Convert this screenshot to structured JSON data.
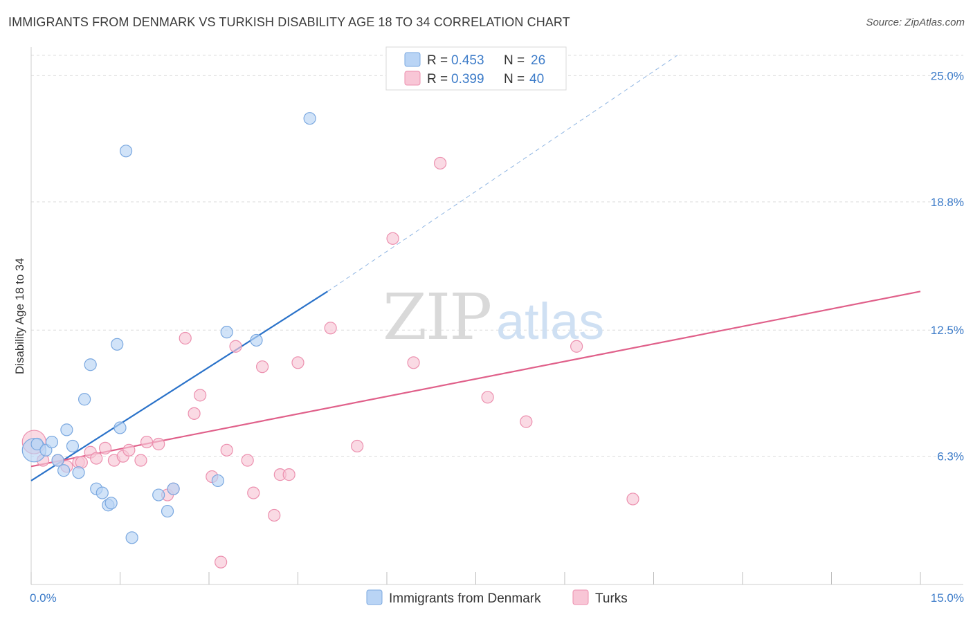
{
  "title": "IMMIGRANTS FROM DENMARK VS TURKISH DISABILITY AGE 18 TO 34 CORRELATION CHART",
  "source": "Source: ZipAtlas.com",
  "watermark": {
    "zip": "ZIP",
    "atlas": "atlas"
  },
  "colors": {
    "denmark_fill": "#b9d4f5",
    "denmark_stroke": "#7aa8e0",
    "denmark_line": "#2a72c9",
    "turks_fill": "#f8c6d6",
    "turks_stroke": "#ec8fae",
    "turks_line": "#e0608a",
    "grid": "#dcdcdc",
    "tick_text": "#3d7cc9"
  },
  "legend": {
    "rows": [
      {
        "r_label": "R =",
        "r_value": "0.453",
        "n_label": "N =",
        "n_value": "26"
      },
      {
        "r_label": "R =",
        "r_value": "0.399",
        "n_label": "N =",
        "n_value": "40"
      }
    ]
  },
  "chart_data": {
    "type": "scatter",
    "title": "IMMIGRANTS FROM DENMARK VS TURKISH DISABILITY AGE 18 TO 34 CORRELATION CHART",
    "xlabel": "",
    "ylabel": "Disability Age 18 to 34",
    "xlim": [
      0,
      15
    ],
    "ylim": [
      0,
      26
    ],
    "x_tick_labels": [
      "0.0%",
      "15.0%"
    ],
    "y_ticks": [
      6.3,
      12.5,
      18.8,
      25.0
    ],
    "y_tick_labels": [
      "6.3%",
      "12.5%",
      "18.8%",
      "25.0%"
    ],
    "grid": true,
    "legend_placement": "top-center",
    "series": [
      {
        "name": "Immigrants from Denmark",
        "r": 0.453,
        "n": 26,
        "trend": {
          "x": [
            0,
            5
          ],
          "y": [
            5.1,
            14.4
          ],
          "dashed_to": [
            10.9,
            26
          ]
        },
        "points": [
          {
            "x": 0.05,
            "y": 6.6,
            "big": true
          },
          {
            "x": 0.1,
            "y": 6.9
          },
          {
            "x": 0.25,
            "y": 6.6
          },
          {
            "x": 0.35,
            "y": 7.0
          },
          {
            "x": 0.45,
            "y": 6.1
          },
          {
            "x": 0.55,
            "y": 5.6
          },
          {
            "x": 0.6,
            "y": 7.6
          },
          {
            "x": 0.7,
            "y": 6.8
          },
          {
            "x": 0.8,
            "y": 5.5
          },
          {
            "x": 0.9,
            "y": 9.1
          },
          {
            "x": 1.0,
            "y": 10.8
          },
          {
            "x": 1.1,
            "y": 4.7
          },
          {
            "x": 1.2,
            "y": 4.5
          },
          {
            "x": 1.3,
            "y": 3.9
          },
          {
            "x": 1.35,
            "y": 4.0
          },
          {
            "x": 1.45,
            "y": 11.8
          },
          {
            "x": 1.5,
            "y": 7.7
          },
          {
            "x": 1.6,
            "y": 21.3
          },
          {
            "x": 1.7,
            "y": 2.3
          },
          {
            "x": 2.15,
            "y": 4.4
          },
          {
            "x": 2.3,
            "y": 3.6
          },
          {
            "x": 2.4,
            "y": 4.7
          },
          {
            "x": 3.15,
            "y": 5.1
          },
          {
            "x": 3.3,
            "y": 12.4
          },
          {
            "x": 3.8,
            "y": 12.0
          },
          {
            "x": 4.7,
            "y": 22.9
          }
        ]
      },
      {
        "name": "Turks",
        "r": 0.399,
        "n": 40,
        "trend": {
          "x": [
            0,
            15
          ],
          "y": [
            5.8,
            14.4
          ]
        },
        "points": [
          {
            "x": 0.05,
            "y": 7.0,
            "big": true
          },
          {
            "x": 0.2,
            "y": 6.1
          },
          {
            "x": 0.45,
            "y": 6.1
          },
          {
            "x": 0.6,
            "y": 5.8
          },
          {
            "x": 0.8,
            "y": 6.0
          },
          {
            "x": 0.85,
            "y": 6.0
          },
          {
            "x": 1.0,
            "y": 6.5
          },
          {
            "x": 1.1,
            "y": 6.2
          },
          {
            "x": 1.25,
            "y": 6.7
          },
          {
            "x": 1.4,
            "y": 6.1
          },
          {
            "x": 1.55,
            "y": 6.3
          },
          {
            "x": 1.65,
            "y": 6.6
          },
          {
            "x": 1.85,
            "y": 6.1
          },
          {
            "x": 1.95,
            "y": 7.0
          },
          {
            "x": 2.15,
            "y": 6.9
          },
          {
            "x": 2.3,
            "y": 4.4
          },
          {
            "x": 2.4,
            "y": 4.7
          },
          {
            "x": 2.6,
            "y": 12.1
          },
          {
            "x": 2.75,
            "y": 8.4
          },
          {
            "x": 2.85,
            "y": 9.3
          },
          {
            "x": 3.05,
            "y": 5.3
          },
          {
            "x": 3.2,
            "y": 1.1
          },
          {
            "x": 3.3,
            "y": 6.6
          },
          {
            "x": 3.45,
            "y": 11.7
          },
          {
            "x": 3.65,
            "y": 6.1
          },
          {
            "x": 3.75,
            "y": 4.5
          },
          {
            "x": 3.9,
            "y": 10.7
          },
          {
            "x": 4.1,
            "y": 3.4
          },
          {
            "x": 4.2,
            "y": 5.4
          },
          {
            "x": 4.35,
            "y": 5.4
          },
          {
            "x": 4.5,
            "y": 10.9
          },
          {
            "x": 5.05,
            "y": 12.6
          },
          {
            "x": 5.5,
            "y": 6.8
          },
          {
            "x": 6.1,
            "y": 17.0
          },
          {
            "x": 6.45,
            "y": 10.9
          },
          {
            "x": 6.9,
            "y": 20.7
          },
          {
            "x": 7.7,
            "y": 9.2
          },
          {
            "x": 8.35,
            "y": 8.0
          },
          {
            "x": 9.2,
            "y": 11.7
          },
          {
            "x": 10.15,
            "y": 4.2
          }
        ]
      }
    ]
  }
}
